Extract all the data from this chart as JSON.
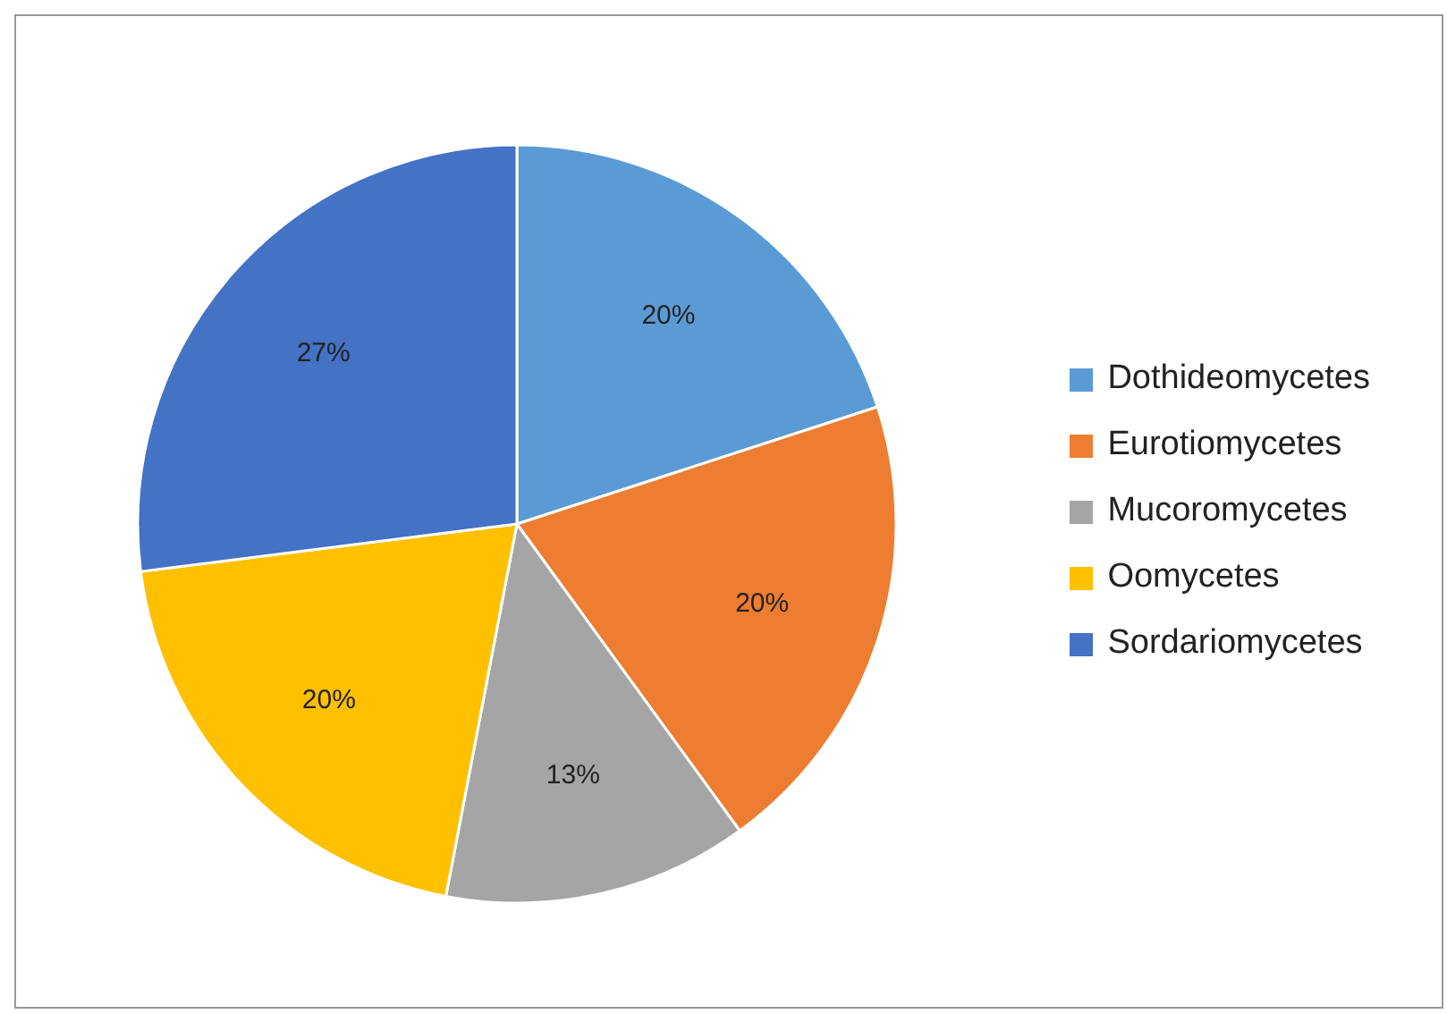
{
  "chart_data": {
    "type": "pie",
    "categories": [
      "Dothideomycetes",
      "Eurotiomycetes",
      "Mucoromycetes",
      "Oomycetes",
      "Sordariomycetes"
    ],
    "values": [
      20,
      20,
      13,
      20,
      27
    ],
    "colors": [
      "#5b9bd5",
      "#ed7d31",
      "#a5a5a5",
      "#ffc000",
      "#4472c4"
    ],
    "value_labels": [
      "20%",
      "20%",
      "13%",
      "20%",
      "27%"
    ],
    "legend": "right"
  }
}
